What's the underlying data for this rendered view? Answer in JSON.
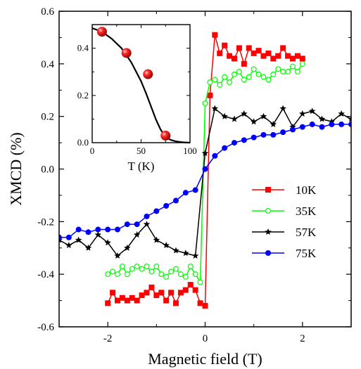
{
  "chart_data": [
    {
      "type": "line",
      "xlabel": "Magnetic field  (T)",
      "ylabel": "XMCD  (%)",
      "xlim": [
        -3,
        3
      ],
      "ylim": [
        -0.6,
        0.6
      ],
      "x_ticks": [
        -2,
        0,
        2
      ],
      "x_tick_labels": [
        "-2",
        "0",
        "2"
      ],
      "y_ticks": [
        -0.6,
        -0.4,
        -0.2,
        0.0,
        0.2,
        0.4,
        0.6
      ],
      "y_tick_labels": [
        "-0.6",
        "-0.4",
        "-0.2",
        "0.0",
        "0.2",
        "0.4",
        "0.6"
      ],
      "legend_position": "lower-right",
      "series": [
        {
          "name": "10K",
          "color": "#ff0000",
          "marker": "square",
          "x": [
            -2.0,
            -1.9,
            -1.8,
            -1.7,
            -1.6,
            -1.5,
            -1.4,
            -1.3,
            -1.2,
            -1.1,
            -1.0,
            -0.9,
            -0.8,
            -0.7,
            -0.6,
            -0.5,
            -0.4,
            -0.3,
            -0.2,
            -0.1,
            0.0,
            0.1,
            0.2,
            0.3,
            0.4,
            0.5,
            0.6,
            0.7,
            0.8,
            0.9,
            1.0,
            1.1,
            1.2,
            1.3,
            1.4,
            1.5,
            1.6,
            1.7,
            1.8,
            1.9,
            2.0
          ],
          "y": [
            -0.51,
            -0.47,
            -0.5,
            -0.49,
            -0.5,
            -0.49,
            -0.5,
            -0.48,
            -0.47,
            -0.45,
            -0.48,
            -0.47,
            -0.5,
            -0.47,
            -0.51,
            -0.47,
            -0.46,
            -0.44,
            -0.46,
            -0.51,
            -0.52,
            0.28,
            0.51,
            0.44,
            0.47,
            0.43,
            0.42,
            0.46,
            0.4,
            0.46,
            0.44,
            0.45,
            0.43,
            0.44,
            0.42,
            0.43,
            0.46,
            0.43,
            0.42,
            0.43,
            0.42
          ]
        },
        {
          "name": "35K",
          "color": "#00ff00",
          "marker": "open-circle",
          "x": [
            -2.0,
            -1.9,
            -1.8,
            -1.7,
            -1.6,
            -1.5,
            -1.4,
            -1.3,
            -1.2,
            -1.1,
            -1.0,
            -0.9,
            -0.8,
            -0.7,
            -0.6,
            -0.5,
            -0.4,
            -0.3,
            -0.2,
            -0.1,
            0.0,
            0.1,
            0.2,
            0.3,
            0.4,
            0.5,
            0.6,
            0.7,
            0.8,
            0.9,
            1.0,
            1.1,
            1.2,
            1.3,
            1.4,
            1.5,
            1.6,
            1.7,
            1.8,
            1.9,
            2.0
          ],
          "y": [
            -0.4,
            -0.39,
            -0.4,
            -0.37,
            -0.4,
            -0.38,
            -0.37,
            -0.38,
            -0.37,
            -0.39,
            -0.37,
            -0.4,
            -0.41,
            -0.39,
            -0.38,
            -0.4,
            -0.41,
            -0.37,
            -0.4,
            -0.43,
            0.25,
            0.33,
            0.34,
            0.32,
            0.35,
            0.33,
            0.36,
            0.37,
            0.34,
            0.35,
            0.38,
            0.36,
            0.35,
            0.34,
            0.36,
            0.38,
            0.37,
            0.37,
            0.39,
            0.37,
            0.4
          ]
        },
        {
          "name": "57K",
          "color": "#000000",
          "marker": "star",
          "x": [
            -3.0,
            -2.8,
            -2.6,
            -2.4,
            -2.2,
            -2.0,
            -1.8,
            -1.6,
            -1.4,
            -1.2,
            -1.0,
            -0.8,
            -0.6,
            -0.4,
            -0.2,
            0.0,
            0.2,
            0.4,
            0.6,
            0.8,
            1.0,
            1.2,
            1.4,
            1.6,
            1.8,
            2.0,
            2.2,
            2.4,
            2.6,
            2.8,
            3.0
          ],
          "y": [
            -0.27,
            -0.29,
            -0.27,
            -0.3,
            -0.25,
            -0.28,
            -0.33,
            -0.3,
            -0.25,
            -0.21,
            -0.27,
            -0.29,
            -0.31,
            -0.32,
            -0.33,
            0.06,
            0.23,
            0.2,
            0.19,
            0.21,
            0.18,
            0.2,
            0.17,
            0.23,
            0.16,
            0.21,
            0.22,
            0.19,
            0.18,
            0.21,
            0.19
          ]
        },
        {
          "name": "75K",
          "color": "#0000ff",
          "marker": "filled-circle",
          "x": [
            -3.0,
            -2.8,
            -2.6,
            -2.4,
            -2.2,
            -2.0,
            -1.8,
            -1.6,
            -1.4,
            -1.2,
            -1.0,
            -0.8,
            -0.6,
            -0.4,
            -0.2,
            0.0,
            0.2,
            0.4,
            0.6,
            0.8,
            1.0,
            1.2,
            1.4,
            1.6,
            1.8,
            2.0,
            2.2,
            2.4,
            2.6,
            2.8,
            3.0
          ],
          "y": [
            -0.26,
            -0.26,
            -0.23,
            -0.24,
            -0.23,
            -0.23,
            -0.23,
            -0.21,
            -0.21,
            -0.18,
            -0.16,
            -0.14,
            -0.12,
            -0.09,
            -0.08,
            0.0,
            0.05,
            0.08,
            0.1,
            0.11,
            0.12,
            0.13,
            0.13,
            0.14,
            0.15,
            0.16,
            0.17,
            0.16,
            0.17,
            0.17,
            0.17
          ]
        }
      ]
    },
    {
      "type": "scatter",
      "xlabel": "T  (K)",
      "ylabel": "",
      "xlim": [
        0,
        100
      ],
      "ylim": [
        0.0,
        0.5
      ],
      "x_ticks": [
        0,
        25,
        50,
        75,
        100
      ],
      "x_tick_labels": [
        "0",
        "",
        "50",
        "",
        "100"
      ],
      "y_ticks": [
        0.0,
        0.2,
        0.4
      ],
      "y_tick_labels": [
        "0.0",
        "0.2",
        "0.4"
      ],
      "series": [
        {
          "color": "#ff0000",
          "marker": "sphere",
          "x": [
            10,
            35,
            57,
            75
          ],
          "y": [
            0.47,
            0.38,
            0.29,
            0.03
          ]
        },
        {
          "color": "#000000",
          "marker": "none",
          "x": [
            0,
            10,
            20,
            30,
            40,
            50,
            55,
            60,
            65,
            70,
            75,
            80,
            85,
            90,
            95,
            100
          ],
          "y": [
            0.485,
            0.47,
            0.44,
            0.4,
            0.34,
            0.26,
            0.21,
            0.155,
            0.1,
            0.055,
            0.025,
            0.012,
            0.006,
            0.003,
            0.001,
            0.0
          ]
        }
      ]
    }
  ]
}
